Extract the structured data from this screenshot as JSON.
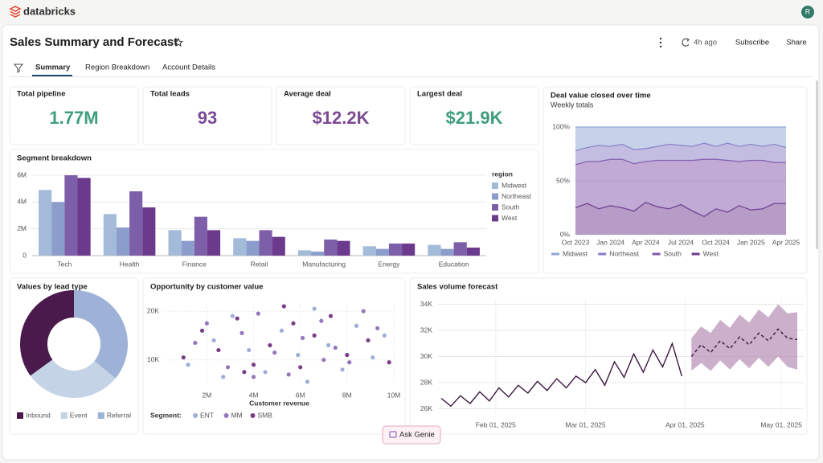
{
  "header": {
    "brand": "databricks",
    "avatar": "R",
    "title": "Sales Summary and Forecast",
    "refresh": "4h ago",
    "actions": [
      "Subscribe",
      "Share"
    ]
  },
  "tabs": [
    "Summary",
    "Region Breakdown",
    "Account Details"
  ],
  "kpis": [
    {
      "label": "Total pipeline",
      "value": "1.77M",
      "color": "#3f9e7e"
    },
    {
      "label": "Total leads",
      "value": "93",
      "color": "#7b4a93"
    },
    {
      "label": "Average deal",
      "value": "$12.2K",
      "color": "#7b4a93"
    },
    {
      "label": "Largest deal",
      "value": "$21.9K",
      "color": "#3f9e7e"
    }
  ],
  "chart_data": [
    {
      "type": "bar",
      "title": "Segment breakdown",
      "legend_title": "region",
      "categories": [
        "Tech",
        "Health",
        "Finance",
        "Retail",
        "Manufacturing",
        "Energy",
        "Education"
      ],
      "series": [
        {
          "name": "Midwest",
          "color": "#a3bad9",
          "values": [
            4900000,
            3100000,
            1900000,
            1300000,
            400000,
            700000,
            800000
          ]
        },
        {
          "name": "Northeast",
          "color": "#8d9dcb",
          "values": [
            4000000,
            2100000,
            1100000,
            1100000,
            300000,
            500000,
            500000
          ]
        },
        {
          "name": "South",
          "color": "#7d5ea9",
          "values": [
            6000000,
            4800000,
            2900000,
            1900000,
            1200000,
            900000,
            1000000
          ]
        },
        {
          "name": "West",
          "color": "#6b3a8c",
          "values": [
            5800000,
            3600000,
            1900000,
            1400000,
            1100000,
            900000,
            600000
          ]
        }
      ],
      "ylim": [
        0,
        6000000
      ],
      "yticks": [
        0,
        {
          "value": 2000000,
          "label": "2M"
        },
        {
          "value": 4000000,
          "label": "4M"
        },
        {
          "value": 6000000,
          "label": "6M"
        }
      ],
      "grid": true
    },
    {
      "type": "area",
      "title": "Deal value closed over time",
      "subtitle": "Weekly totals",
      "stacked": true,
      "x": [
        "Oct 2023",
        "Nov 2023",
        "Dec 2023",
        "Jan 2024",
        "Feb 2024",
        "Mar 2024",
        "Apr 2024",
        "May 2024",
        "Jun 2024",
        "Jul 2024",
        "Aug 2024",
        "Sep 2024",
        "Oct 2024",
        "Nov 2024",
        "Dec 2024",
        "Jan 2025",
        "Feb 2025",
        "Mar 2025",
        "Apr 2025"
      ],
      "xticks": [
        "Oct 2023",
        "Jan 2024",
        "Apr 2024",
        "Jul 2024",
        "Oct 2024",
        "Jan 2025",
        "Apr 2025"
      ],
      "series": [
        {
          "name": "Midwest",
          "color": "#8ea6d4",
          "values": [
            22,
            19,
            17,
            18,
            16,
            21,
            20,
            18,
            16,
            17,
            18,
            15,
            18,
            15,
            18,
            16,
            18,
            16,
            19
          ]
        },
        {
          "name": "Northeast",
          "color": "#8a7cc6",
          "values": [
            13,
            13,
            15,
            12,
            14,
            13,
            12,
            13,
            15,
            14,
            13,
            15,
            12,
            16,
            14,
            15,
            13,
            17,
            14
          ]
        },
        {
          "name": "South",
          "color": "#8358ad",
          "values": [
            40,
            39,
            44,
            43,
            45,
            44,
            38,
            43,
            45,
            41,
            47,
            53,
            46,
            48,
            41,
            46,
            45,
            38,
            38
          ]
        },
        {
          "name": "West",
          "color": "#6d3a8e",
          "values": [
            25,
            29,
            24,
            27,
            25,
            22,
            30,
            26,
            24,
            28,
            22,
            17,
            24,
            21,
            27,
            23,
            24,
            29,
            29
          ]
        }
      ],
      "ylim": [
        0,
        100
      ],
      "yticks": [
        {
          "value": 0,
          "label": "0%"
        },
        {
          "value": 50,
          "label": "50%"
        },
        {
          "value": 100,
          "label": "100%"
        }
      ],
      "grid": true
    },
    {
      "type": "pie",
      "title": "Values by lead type",
      "donut": true,
      "categories": [
        "Inbound",
        "Event",
        "Referral"
      ],
      "values": [
        35,
        29,
        36
      ],
      "colors": [
        "#4b1a4c",
        "#c5d3e7",
        "#9db2d6"
      ]
    },
    {
      "type": "scatter",
      "title": "Opportunity by customer value",
      "xlabel": "Customer revenue",
      "legend_title": "Segment:",
      "series": [
        {
          "name": "ENT",
          "color": "#9eaed8",
          "x": [
            1200000,
            2300000,
            3100000,
            3800000,
            4500000,
            5200000,
            5900000,
            6600000,
            7200000,
            7800000,
            8400000,
            9100000,
            9600000,
            2700000,
            6300000
          ],
          "y": [
            9000,
            14000,
            19000,
            12000,
            7500,
            16000,
            11000,
            20500,
            13000,
            8000,
            17000,
            10500,
            15000,
            6500,
            5500
          ]
        },
        {
          "name": "MM",
          "color": "#9477bd",
          "x": [
            1500000,
            2000000,
            2900000,
            3500000,
            4200000,
            4900000,
            5500000,
            6100000,
            6900000,
            7500000,
            8100000,
            8700000,
            9300000,
            4000000,
            7000000
          ],
          "y": [
            13500,
            17500,
            8500,
            15500,
            19500,
            11500,
            7000,
            14500,
            18000,
            12500,
            9500,
            20000,
            16500,
            6500,
            10000
          ]
        },
        {
          "name": "SMB",
          "color": "#7b3d88",
          "x": [
            1000000,
            1800000,
            2500000,
            3300000,
            4000000,
            4700000,
            5300000,
            6000000,
            6600000,
            7300000,
            8000000,
            8900000,
            9800000,
            3600000,
            5700000
          ],
          "y": [
            10500,
            16000,
            12000,
            18500,
            9000,
            13000,
            21000,
            8500,
            15000,
            19000,
            11000,
            14000,
            9500,
            7500,
            17500
          ]
        }
      ],
      "xlim": [
        200000,
        10000000
      ],
      "ylim": [
        5000,
        21500
      ],
      "xticks": [
        {
          "value": 2000000,
          "label": "2M"
        },
        {
          "value": 4000000,
          "label": "4M"
        },
        {
          "value": 6000000,
          "label": "6M"
        },
        {
          "value": 8000000,
          "label": "8M"
        },
        {
          "value": 10000000,
          "label": "10M"
        }
      ],
      "yticks": [
        {
          "value": 10000,
          "label": "10K"
        },
        {
          "value": 20000,
          "label": "20K"
        }
      ],
      "grid": true
    },
    {
      "type": "line",
      "title": "Sales volume forecast",
      "x": [
        "Jan 15, 2025",
        "Jan 18, 2025",
        "Jan 21, 2025",
        "Jan 24, 2025",
        "Jan 27, 2025",
        "Jan 30, 2025",
        "Feb 02, 2025",
        "Feb 05, 2025",
        "Feb 08, 2025",
        "Feb 11, 2025",
        "Feb 14, 2025",
        "Feb 17, 2025",
        "Feb 20, 2025",
        "Feb 23, 2025",
        "Feb 26, 2025",
        "Mar 01, 2025",
        "Mar 04, 2025",
        "Mar 07, 2025",
        "Mar 10, 2025",
        "Mar 13, 2025",
        "Mar 16, 2025",
        "Mar 19, 2025",
        "Mar 22, 2025",
        "Mar 25, 2025",
        "Mar 28, 2025",
        "Mar 31, 2025",
        "Apr 03, 2025",
        "Apr 06, 2025",
        "Apr 09, 2025",
        "Apr 12, 2025",
        "Apr 15, 2025",
        "Apr 18, 2025",
        "Apr 21, 2025",
        "Apr 24, 2025",
        "Apr 27, 2025",
        "Apr 30, 2025",
        "May 03, 2025",
        "May 06, 2025"
      ],
      "series": [
        {
          "color": "#3d1640",
          "values": [
            26800,
            26200,
            27000,
            26400,
            27300,
            26600,
            27600,
            26900,
            27800,
            27200,
            28100,
            27400,
            28300,
            27600,
            28500,
            28000,
            29000,
            27800,
            29600,
            28400,
            30200,
            28800,
            30500,
            29200,
            31000,
            28500,
            null,
            null,
            null,
            null,
            null,
            null,
            null,
            null,
            null,
            null,
            null,
            null
          ]
        },
        {
          "color": "#3d1640",
          "dash": true,
          "values": [
            null,
            null,
            null,
            null,
            null,
            null,
            null,
            null,
            null,
            null,
            null,
            null,
            null,
            null,
            null,
            null,
            null,
            null,
            null,
            null,
            null,
            null,
            null,
            null,
            null,
            null,
            30000,
            30900,
            30300,
            31200,
            30600,
            31500,
            30900,
            31800,
            31200,
            32100,
            31400,
            31300
          ]
        }
      ],
      "band": {
        "color": "#b68fb5",
        "lower": [
          null,
          null,
          null,
          null,
          null,
          null,
          null,
          null,
          null,
          null,
          null,
          null,
          null,
          null,
          null,
          null,
          null,
          null,
          null,
          null,
          null,
          null,
          null,
          null,
          null,
          null,
          28900,
          29500,
          28900,
          29700,
          29000,
          29800,
          29100,
          29900,
          29200,
          30000,
          29200,
          29000
        ],
        "upper": [
          null,
          null,
          null,
          null,
          null,
          null,
          null,
          null,
          null,
          null,
          null,
          null,
          null,
          null,
          null,
          null,
          null,
          null,
          null,
          null,
          null,
          null,
          null,
          null,
          null,
          null,
          31400,
          32300,
          31800,
          32800,
          32200,
          33200,
          32600,
          33600,
          33000,
          34000,
          33300,
          33400
        ]
      },
      "xlim": [
        "Jan 14, 2025",
        "May 08, 2025"
      ],
      "xticks": [
        "Feb 01, 2025",
        "Mar 01, 2025",
        "Apr 01, 2025",
        "May 01, 2025"
      ],
      "ylim": [
        25600,
        34400
      ],
      "yticks": [
        {
          "value": 26000,
          "label": "26K"
        },
        {
          "value": 28000,
          "label": "28K"
        },
        {
          "value": 30000,
          "label": "30K"
        },
        {
          "value": 32000,
          "label": "32K"
        },
        {
          "value": 34000,
          "label": "34K"
        }
      ],
      "grid": true
    }
  ],
  "ask_button": "Ask Genie"
}
